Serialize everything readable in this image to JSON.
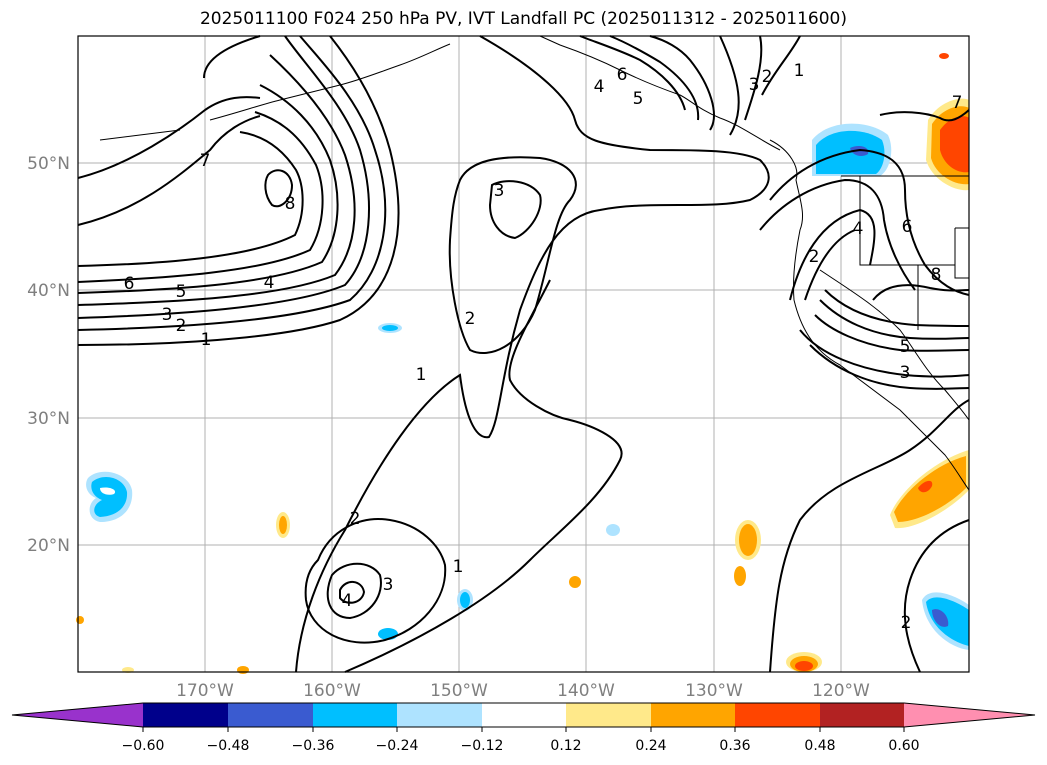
{
  "title": "2025011100 F024 250 hPa PV, IVT Landfall PC (2025011312 - 2025011600)",
  "map": {
    "lat_labels": [
      "50°N",
      "40°N",
      "30°N",
      "20°N"
    ],
    "lon_labels": [
      "170°W",
      "160°W",
      "150°W",
      "140°W",
      "130°W",
      "120°W"
    ],
    "contour_labels": [
      "1",
      "2",
      "3",
      "4",
      "5",
      "6",
      "7",
      "8"
    ],
    "contour_color": "#000000",
    "grid_color": "#b0b0b0",
    "label_color": "#7f7f7f"
  },
  "colorbar": {
    "ticks": [
      "−0.60",
      "−0.48",
      "−0.36",
      "−0.24",
      "−0.12",
      "0.12",
      "0.24",
      "0.36",
      "0.48",
      "0.60"
    ],
    "colors": [
      "#9932cc",
      "#00008b",
      "#3a5bd0",
      "#00bfff",
      "#aee3ff",
      "#ffffff",
      "#ffe98a",
      "#ffa500",
      "#ff4500",
      "#b22222",
      "#ff8fb0"
    ]
  }
}
